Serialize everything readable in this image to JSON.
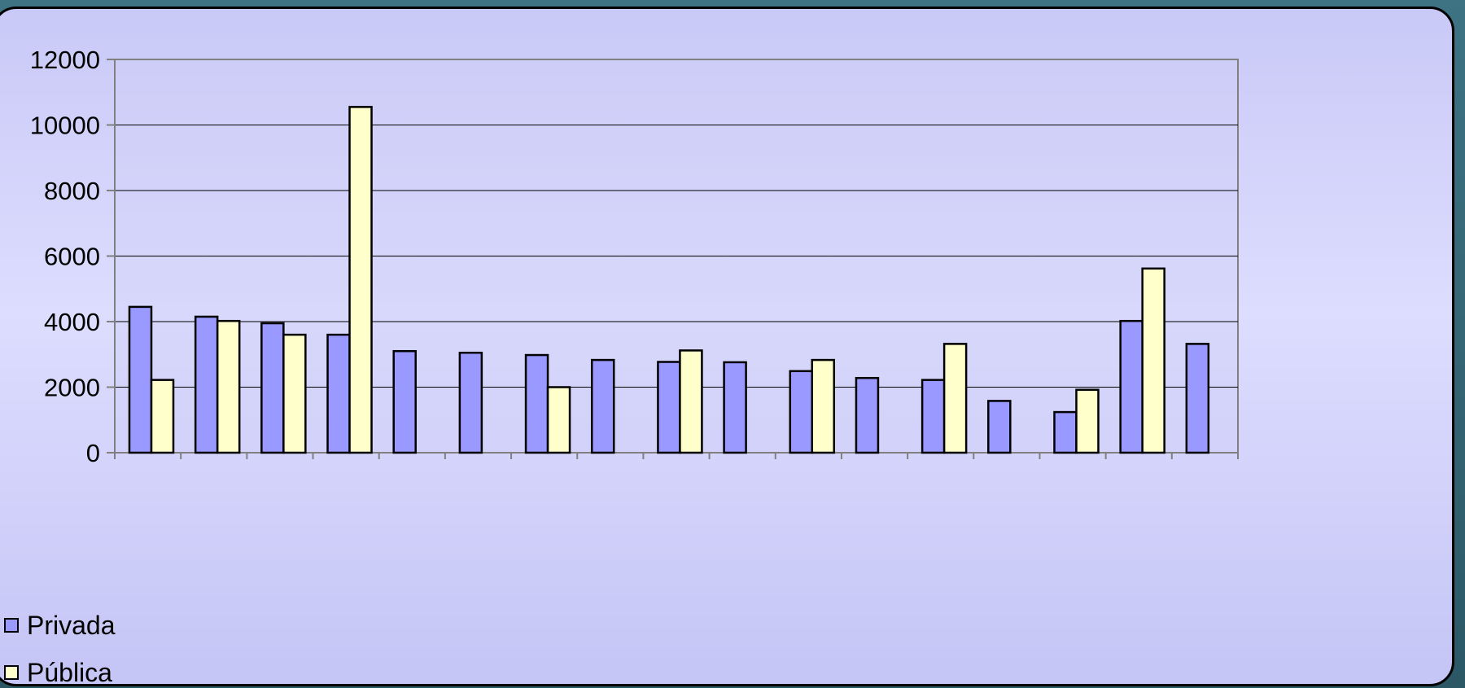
{
  "chart_data": {
    "type": "bar",
    "categories": [
      "",
      "",
      "",
      "",
      "",
      "",
      "",
      "",
      "",
      "",
      "",
      "",
      "",
      "",
      "",
      "",
      ""
    ],
    "series": [
      {
        "name": "Privada",
        "color": "#9999ff",
        "values": [
          4450,
          4150,
          3950,
          3600,
          3100,
          3050,
          2980,
          2830,
          2770,
          2760,
          2490,
          2280,
          2220,
          1580,
          1240,
          4020,
          3320
        ]
      },
      {
        "name": "Pública",
        "color": "#ffffcc",
        "values": [
          2220,
          4020,
          3600,
          10550,
          null,
          null,
          2000,
          null,
          3120,
          null,
          2830,
          null,
          3320,
          null,
          1920,
          5620,
          null
        ]
      }
    ],
    "ylim": [
      0,
      12000
    ],
    "yticks": [
      "0",
      "2000",
      "4000",
      "6000",
      "8000",
      "10000",
      "12000"
    ],
    "grid": true,
    "legend_position": "bottom-left",
    "xlabel": "",
    "ylabel": ""
  }
}
